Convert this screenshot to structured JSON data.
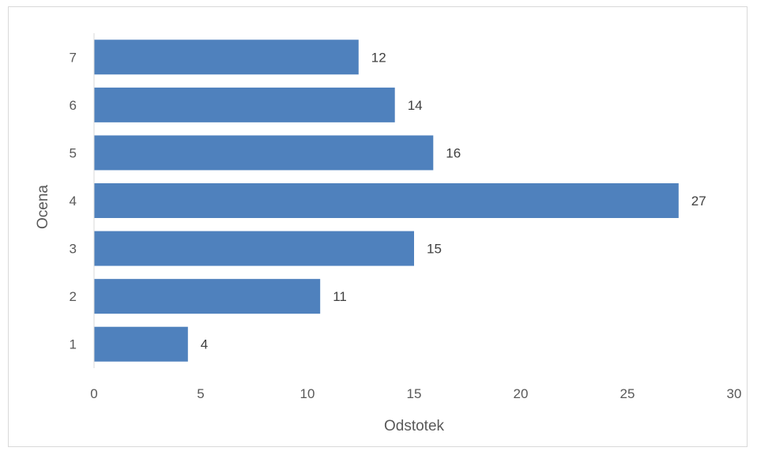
{
  "chart_data": {
    "type": "bar",
    "orientation": "horizontal",
    "categories": [
      "1",
      "2",
      "3",
      "4",
      "5",
      "6",
      "7"
    ],
    "values": [
      4.4,
      10.6,
      15.0,
      27.4,
      15.9,
      14.1,
      12.4
    ],
    "data_labels": [
      "4",
      "11",
      "15",
      "27",
      "16",
      "14",
      "12"
    ],
    "title": "",
    "xlabel": "Odstotek",
    "ylabel": "Ocena",
    "xlim": [
      0,
      30
    ],
    "x_ticks": [
      "0",
      "5",
      "10",
      "15",
      "20",
      "25",
      "30"
    ],
    "grid": false,
    "legend": "none",
    "bar_color": "#4f81bd",
    "axis_color": "#d9d9d9"
  }
}
